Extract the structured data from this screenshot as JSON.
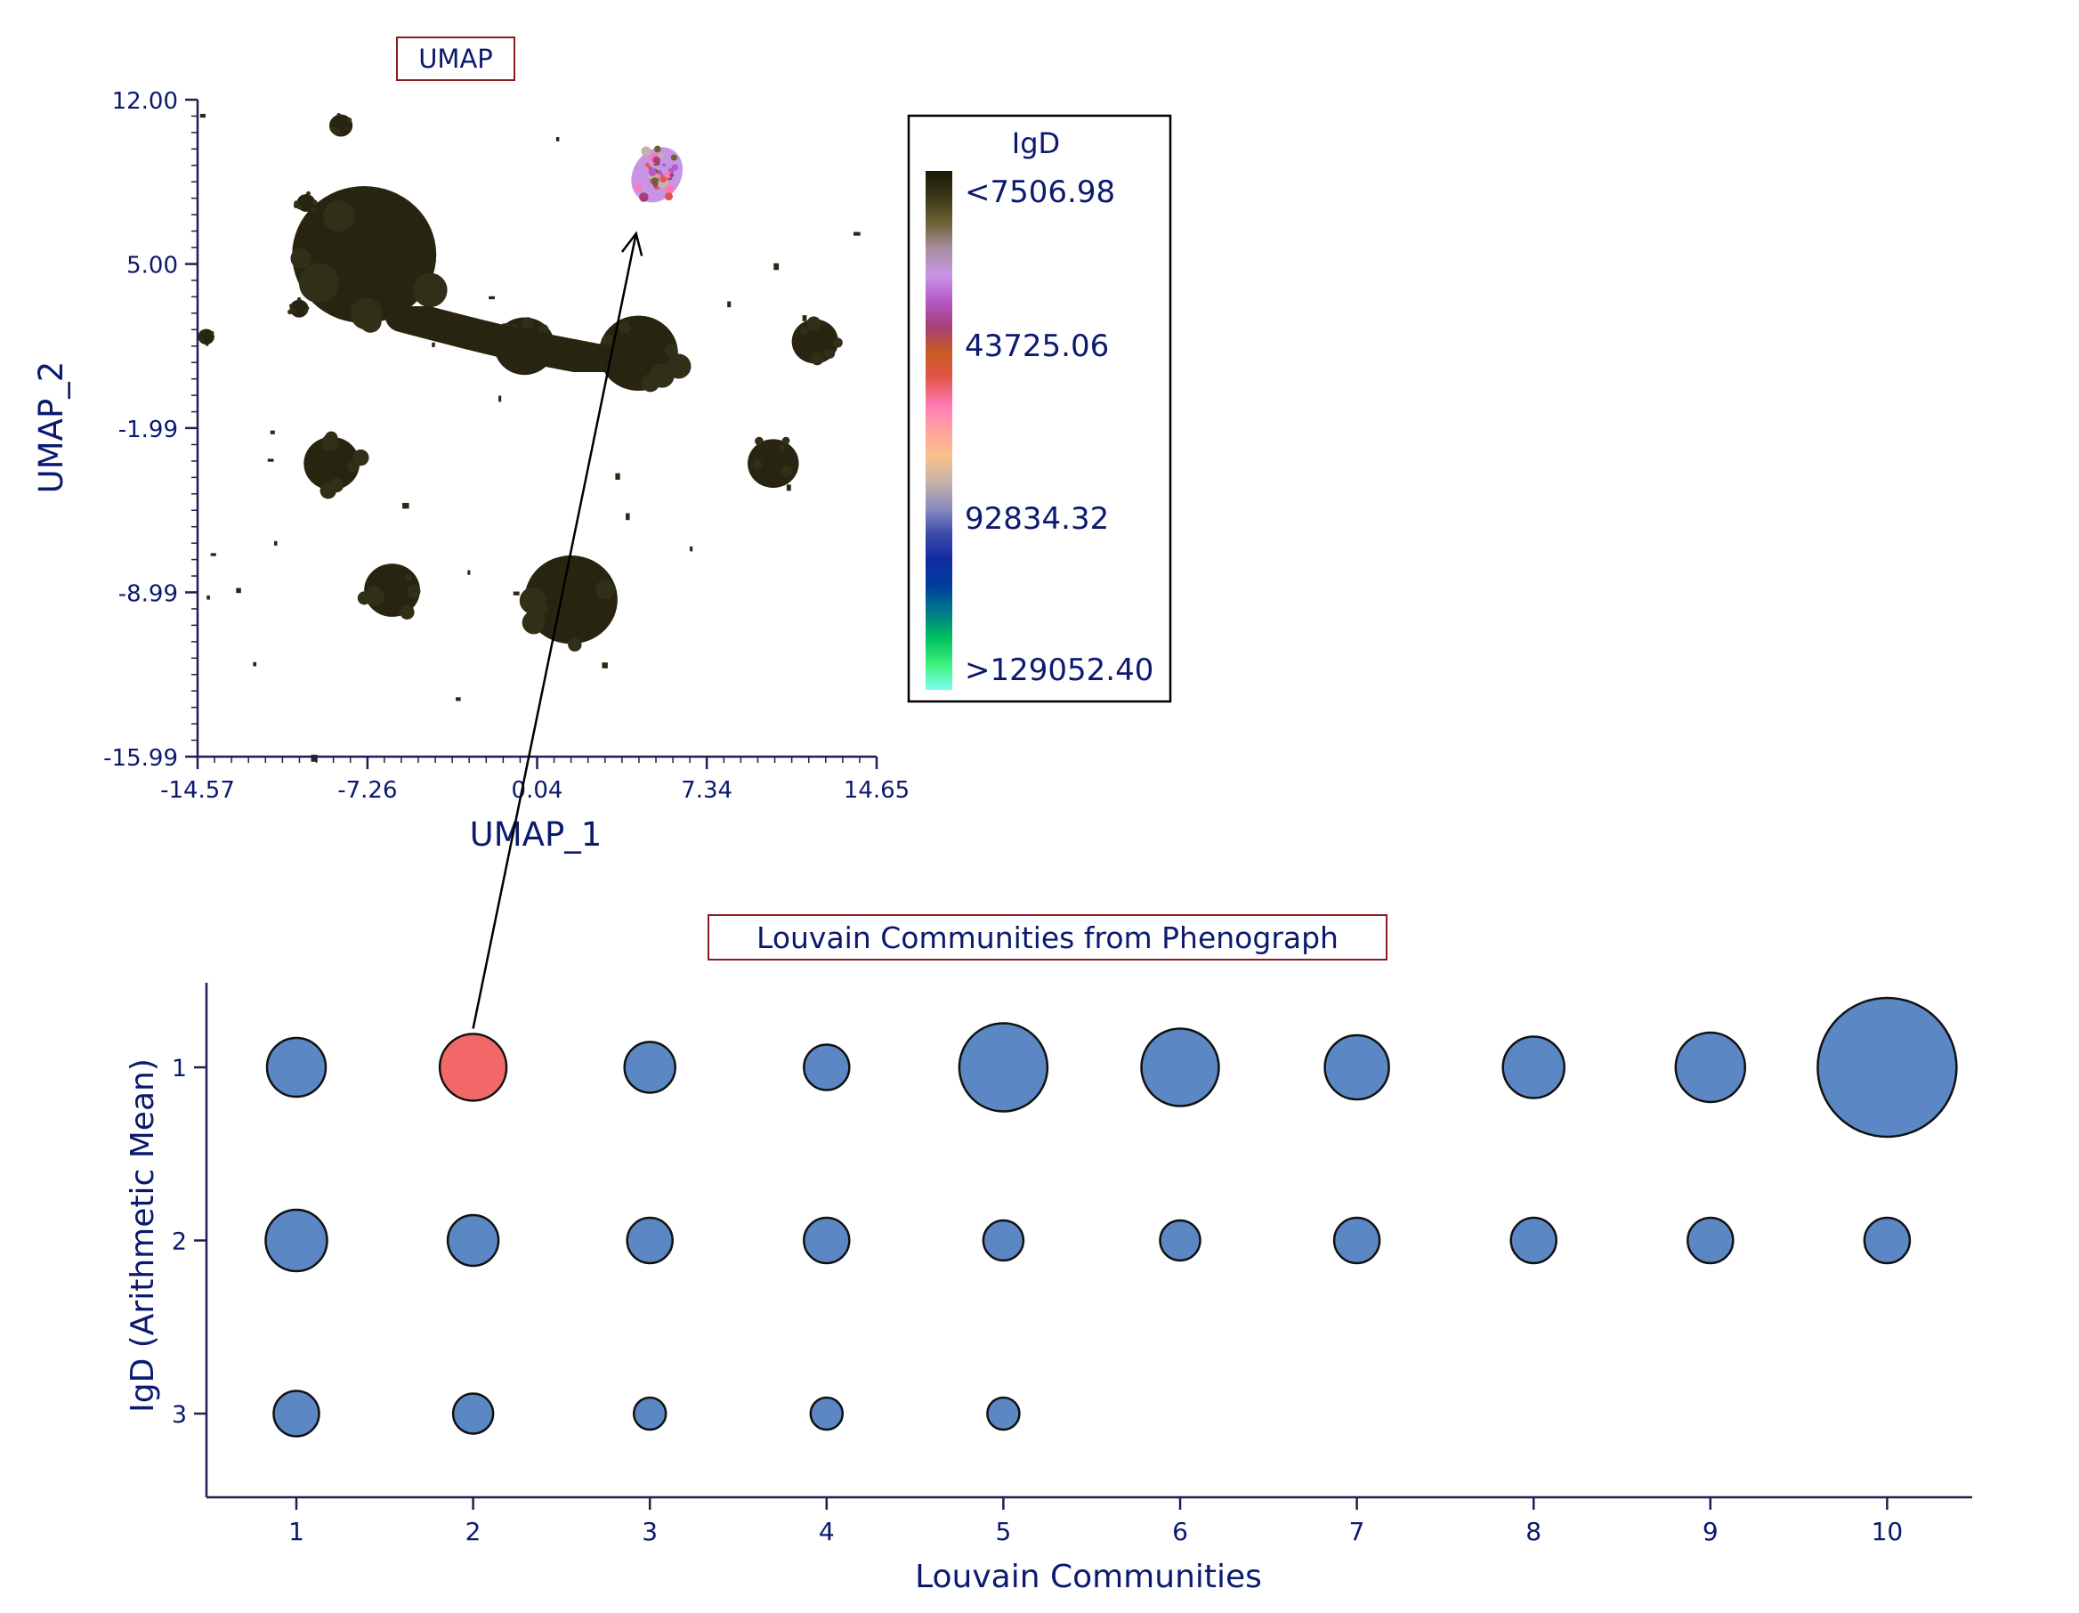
{
  "chart_data": [
    {
      "type": "scatter",
      "title": "UMAP",
      "xlabel": "UMAP_1",
      "ylabel": "UMAP_2",
      "xlim": [
        -14.57,
        14.65
      ],
      "ylim": [
        -15.99,
        12.0
      ],
      "x_ticks": [
        "-14.57",
        "-7.26",
        "0.04",
        "7.34",
        "14.65"
      ],
      "y_ticks": [
        "12.00",
        "5.00",
        "-1.99",
        "-8.99",
        "-15.99"
      ],
      "color_parameter": "IgD",
      "colorbar_labels": [
        "<7506.98",
        "43725.06",
        "92834.32",
        ">129052.40"
      ],
      "colorbar_colors": [
        "#1a1a08",
        "#3a3818",
        "#6e6236",
        "#a88ea0",
        "#c895e6",
        "#b65ac8",
        "#a63f7a",
        "#c85a22",
        "#e2564a",
        "#ff79b4",
        "#ffa3a0",
        "#f8c08a",
        "#c6b2a6",
        "#8a8cc2",
        "#3c4aa8",
        "#102aa0",
        "#003f9c",
        "#007a8a",
        "#00c05e",
        "#3cf07a",
        "#7cfff0"
      ],
      "clusters": [
        {
          "x": -7.4,
          "y": 5.4,
          "size": 3.1,
          "shade": "dark"
        },
        {
          "x": 4.4,
          "y": 1.2,
          "size": 1.7,
          "shade": "dark"
        },
        {
          "x": -0.5,
          "y": 1.5,
          "size": 1.3,
          "shade": "dark"
        },
        {
          "x": 1.5,
          "y": -9.3,
          "size": 2.0,
          "shade": "dark"
        },
        {
          "x": -8.8,
          "y": -3.5,
          "size": 1.2,
          "shade": "dark"
        },
        {
          "x": -6.2,
          "y": -8.9,
          "size": 1.2,
          "shade": "dark"
        },
        {
          "x": 10.2,
          "y": -3.5,
          "size": 1.1,
          "shade": "dark"
        },
        {
          "x": 12.0,
          "y": 1.7,
          "size": 1.0,
          "shade": "dark"
        },
        {
          "x": -8.4,
          "y": 10.9,
          "size": 0.5,
          "shade": "dark"
        },
        {
          "x": -9.9,
          "y": 7.6,
          "size": 0.4,
          "shade": "dark"
        },
        {
          "x": -10.2,
          "y": 3.1,
          "size": 0.4,
          "shade": "dark"
        },
        {
          "x": -14.2,
          "y": 1.9,
          "size": 0.35,
          "shade": "dark"
        },
        {
          "x": 5.2,
          "y": 8.8,
          "size": 1.2,
          "shade": "IgD-high"
        }
      ]
    },
    {
      "type": "scatter",
      "title": "Louvain Communities from Phenograph",
      "xlabel": "Louvain Communities",
      "ylabel": "IgD (Arithmetic Mean)",
      "x_ticks": [
        "1",
        "2",
        "3",
        "4",
        "5",
        "6",
        "7",
        "8",
        "9",
        "10"
      ],
      "y_ticks": [
        "1",
        "2",
        "3"
      ],
      "bubble_color": "#5b87c4",
      "highlight_color": "#f26868",
      "rows": [
        {
          "rank": 1,
          "sizes": [
            22,
            25,
            19,
            17,
            33,
            29,
            24,
            23,
            26,
            52
          ],
          "highlight_column": 2
        },
        {
          "rank": 2,
          "sizes": [
            23,
            19,
            17,
            17,
            15,
            15,
            17,
            17,
            17,
            17
          ],
          "highlight_column": null
        },
        {
          "rank": 3,
          "sizes": [
            17,
            15,
            12,
            12,
            12
          ],
          "highlight_column": null
        }
      ]
    }
  ]
}
